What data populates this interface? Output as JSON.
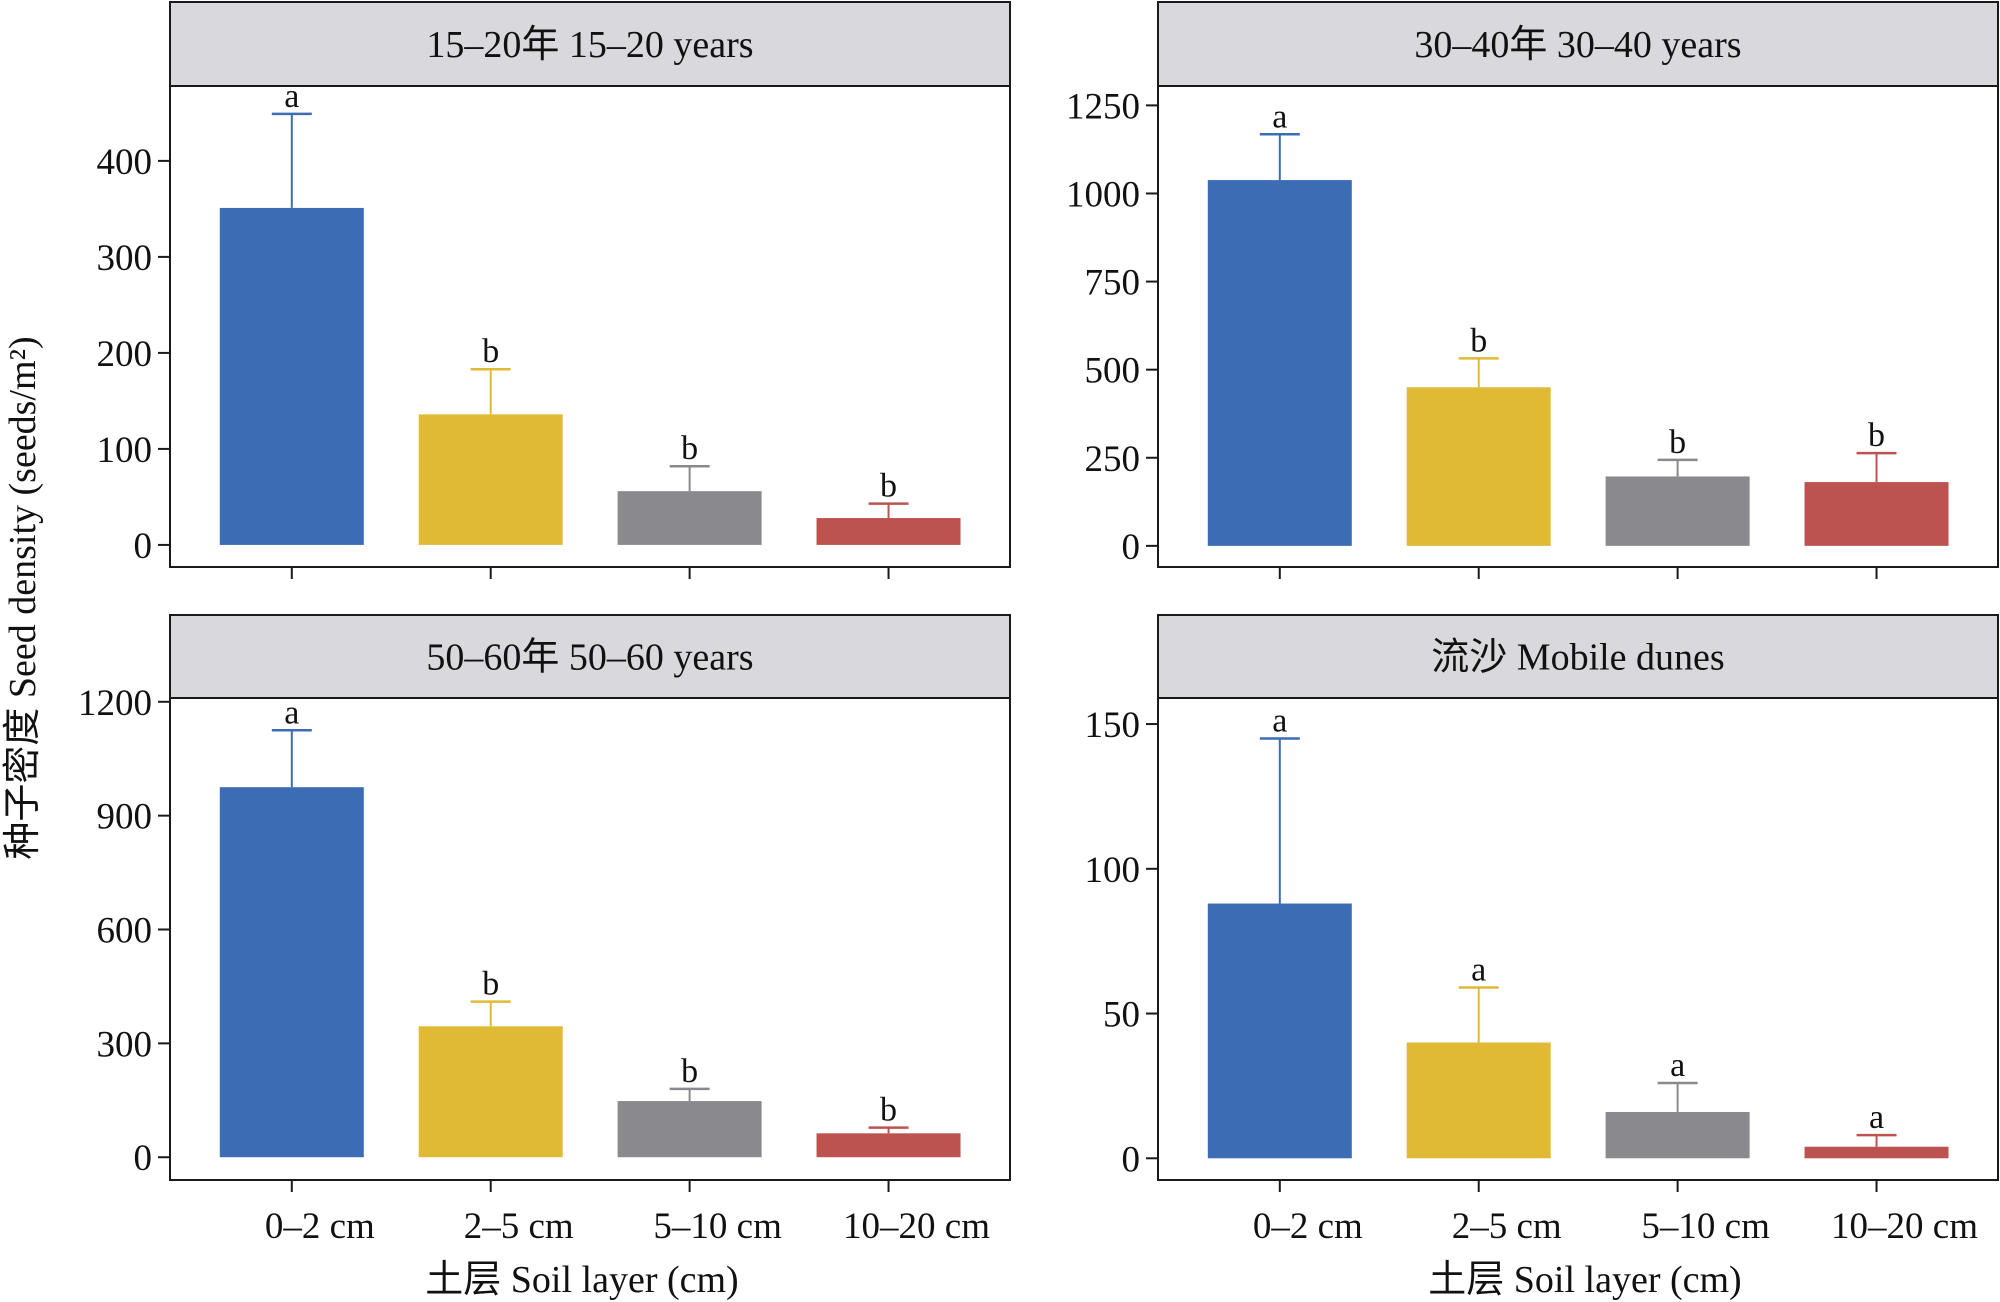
{
  "figure": {
    "ylabel": "种子密度 Seed density (seeds/m²)",
    "xlabel": "土层 Soil layer (cm)"
  },
  "chart_data": [
    {
      "type": "bar",
      "title": "15–20年 15–20 years",
      "categories": [
        "0–2 cm",
        "2–5 cm",
        "5–10 cm",
        "10–20 cm"
      ],
      "values": [
        351,
        136,
        56,
        28
      ],
      "errors": [
        98,
        47,
        26,
        15
      ],
      "letters": [
        "a",
        "b",
        "b",
        "b"
      ],
      "colors": [
        "#3c6db4",
        "#e0b935",
        "#8a898d",
        "#bd5350"
      ],
      "yticks": [
        0,
        100,
        200,
        300,
        400
      ],
      "ylim": [
        -23,
        478
      ],
      "xlabel": "土层 Soil layer (cm)",
      "ylabel": "种子密度 Seed density (seeds/m²)",
      "grid": false,
      "legend": "none"
    },
    {
      "type": "bar",
      "title": "30–40年 30–40 years",
      "categories": [
        "0–2 cm",
        "2–5 cm",
        "5–10 cm",
        "10–20 cm"
      ],
      "values": [
        1038,
        450,
        197,
        181
      ],
      "errors": [
        130,
        82,
        47,
        82
      ],
      "letters": [
        "a",
        "b",
        "b",
        "b"
      ],
      "colors": [
        "#3c6db4",
        "#e0b935",
        "#8a898d",
        "#bd5350"
      ],
      "yticks": [
        0,
        250,
        500,
        750,
        1000,
        1250
      ],
      "ylim": [
        -60,
        1305
      ],
      "xlabel": "土层 Soil layer (cm)",
      "ylabel": "种子密度 Seed density (seeds/m²)",
      "grid": false,
      "legend": "none"
    },
    {
      "type": "bar",
      "title": "50–60年 50–60 years",
      "categories": [
        "0–2 cm",
        "2–5 cm",
        "5–10 cm",
        "10–20 cm"
      ],
      "values": [
        975,
        345,
        148,
        63
      ],
      "errors": [
        150,
        65,
        32,
        15
      ],
      "letters": [
        "a",
        "b",
        "b",
        "b"
      ],
      "colors": [
        "#3c6db4",
        "#e0b935",
        "#8a898d",
        "#bd5350"
      ],
      "yticks": [
        0,
        300,
        600,
        900,
        1200
      ],
      "ylim": [
        -60,
        1210
      ],
      "xlabel": "土层 Soil layer (cm)",
      "ylabel": "种子密度 Seed density (seeds/m²)",
      "grid": false,
      "legend": "none"
    },
    {
      "type": "bar",
      "title": "流沙 Mobile dunes",
      "categories": [
        "0–2 cm",
        "2–5 cm",
        "5–10 cm",
        "10–20 cm"
      ],
      "values": [
        88,
        40,
        16,
        4
      ],
      "errors": [
        57,
        19,
        10,
        4
      ],
      "letters": [
        "a",
        "a",
        "a",
        "a"
      ],
      "colors": [
        "#3c6db4",
        "#e0b935",
        "#8a898d",
        "#bd5350"
      ],
      "yticks": [
        0,
        50,
        100,
        150
      ],
      "ylim": [
        -7.5,
        159
      ],
      "xlabel": "土层 Soil layer (cm)",
      "ylabel": "种子密度 Seed density (seeds/m²)",
      "grid": false,
      "legend": "none"
    }
  ]
}
